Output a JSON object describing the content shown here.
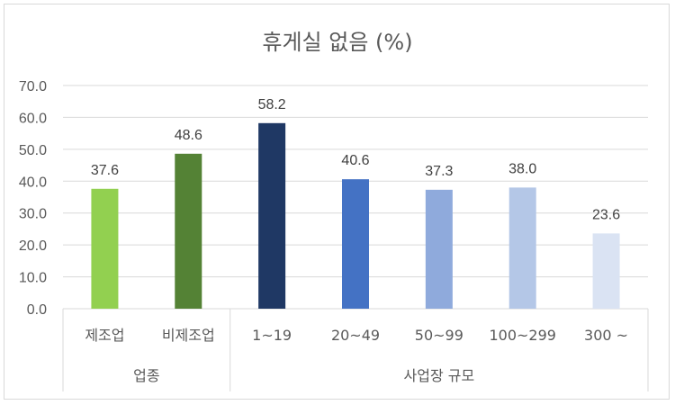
{
  "chart_data": {
    "type": "bar",
    "title": "휴게실 없음 (%)",
    "ylim": [
      0,
      70
    ],
    "yticks": [
      "0.0",
      "10.0",
      "20.0",
      "30.0",
      "40.0",
      "50.0",
      "60.0",
      "70.0"
    ],
    "grid": true,
    "categories": [
      "제조업",
      "비제조업",
      "1~19",
      "20~49",
      "50~99",
      "100~299",
      "300 ~"
    ],
    "values": [
      37.6,
      48.6,
      58.2,
      40.6,
      37.3,
      38.0,
      23.6
    ],
    "value_labels": [
      "37.6",
      "48.6",
      "58.2",
      "40.6",
      "37.3",
      "38.0",
      "23.6"
    ],
    "colors": [
      "#92d050",
      "#548235",
      "#1f3864",
      "#4472c4",
      "#8faadc",
      "#b4c7e7",
      "#dae3f3"
    ],
    "groups": [
      {
        "label": "업종",
        "categories": [
          "제조업",
          "비제조업"
        ]
      },
      {
        "label": "사업장 규모",
        "categories": [
          "1~19",
          "20~49",
          "50~99",
          "100~299",
          "300 ~"
        ]
      }
    ]
  }
}
